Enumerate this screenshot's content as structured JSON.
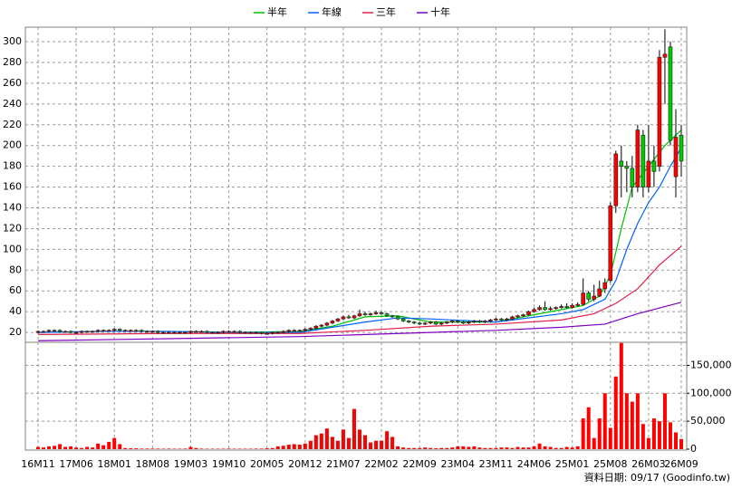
{
  "chart_data": {
    "type": "candlestick",
    "legend": "top",
    "grid": true,
    "categories": [
      "16M11",
      null,
      null,
      null,
      null,
      null,
      null,
      "17M06",
      null,
      null,
      null,
      null,
      null,
      null,
      "18M01",
      null,
      null,
      null,
      null,
      null,
      null,
      "18M08",
      null,
      null,
      null,
      null,
      null,
      null,
      "19M03",
      null,
      null,
      null,
      null,
      null,
      null,
      "19M10",
      null,
      null,
      null,
      null,
      null,
      null,
      "20M05",
      null,
      null,
      null,
      null,
      null,
      null,
      "20M12",
      null,
      null,
      null,
      null,
      null,
      null,
      "21M07",
      null,
      null,
      null,
      null,
      null,
      null,
      "22M02",
      null,
      null,
      null,
      null,
      null,
      null,
      "22M09",
      null,
      null,
      null,
      null,
      null,
      null,
      "23M04",
      null,
      null,
      null,
      null,
      null,
      null,
      "23M11",
      null,
      null,
      null,
      null,
      null,
      null,
      "24M06",
      null,
      null,
      null,
      null,
      null,
      null,
      "25M01",
      null,
      null,
      null,
      null,
      null,
      null,
      "25M08",
      null,
      null,
      null,
      null,
      null,
      null,
      "26M03",
      null,
      null,
      null,
      null,
      null,
      "26M09"
    ],
    "open": [
      20,
      21,
      21,
      22,
      22,
      21,
      21,
      20,
      20,
      21,
      21,
      21,
      22,
      22,
      22,
      23,
      22,
      22,
      22,
      22,
      21,
      21,
      21,
      20,
      20,
      20,
      20,
      20,
      20,
      21,
      21,
      21,
      20,
      20,
      20,
      21,
      21,
      21,
      20,
      20,
      20,
      20,
      19,
      19,
      20,
      20,
      21,
      22,
      22,
      22,
      23,
      24,
      26,
      27,
      29,
      31,
      33,
      35,
      34,
      36,
      38,
      37,
      38,
      39,
      38,
      36,
      35,
      33,
      31,
      30,
      29,
      28,
      29,
      30,
      28,
      29,
      30,
      31,
      30,
      29,
      30,
      31,
      30,
      31,
      32,
      33,
      32,
      33,
      35,
      36,
      37,
      40,
      42,
      44,
      42,
      43,
      44,
      45,
      44,
      46,
      47,
      58,
      52,
      55,
      62,
      70,
      142,
      185,
      180,
      178,
      160,
      210,
      160,
      185,
      180,
      285,
      295,
      170,
      210
    ],
    "high": [
      22,
      22,
      23,
      23,
      23,
      22,
      22,
      21,
      22,
      22,
      22,
      23,
      23,
      23,
      24,
      24,
      23,
      23,
      23,
      23,
      22,
      22,
      22,
      21,
      21,
      21,
      21,
      21,
      22,
      22,
      22,
      22,
      21,
      21,
      22,
      22,
      22,
      22,
      21,
      21,
      21,
      21,
      20,
      21,
      21,
      22,
      23,
      23,
      23,
      24,
      25,
      27,
      28,
      30,
      32,
      34,
      36,
      37,
      37,
      42,
      40,
      39,
      41,
      40,
      39,
      37,
      36,
      34,
      32,
      31,
      30,
      30,
      31,
      31,
      30,
      31,
      32,
      32,
      31,
      31,
      32,
      32,
      32,
      33,
      34,
      34,
      34,
      36,
      37,
      38,
      41,
      44,
      46,
      50,
      45,
      45,
      47,
      48,
      48,
      49,
      72,
      60,
      66,
      70,
      72,
      145,
      195,
      200,
      185,
      190,
      220,
      215,
      220,
      200,
      292,
      312,
      300,
      235,
      220
    ],
    "low": [
      19,
      20,
      20,
      21,
      20,
      20,
      19,
      19,
      19,
      20,
      20,
      20,
      21,
      21,
      21,
      21,
      21,
      21,
      21,
      20,
      20,
      20,
      19,
      19,
      19,
      19,
      19,
      19,
      19,
      20,
      20,
      19,
      19,
      19,
      19,
      20,
      20,
      19,
      19,
      19,
      19,
      18,
      18,
      18,
      19,
      19,
      20,
      21,
      21,
      21,
      22,
      23,
      25,
      26,
      28,
      30,
      32,
      33,
      33,
      35,
      36,
      36,
      37,
      37,
      35,
      34,
      32,
      30,
      29,
      28,
      27,
      27,
      28,
      27,
      27,
      28,
      29,
      29,
      28,
      28,
      29,
      29,
      29,
      30,
      31,
      31,
      31,
      32,
      34,
      35,
      36,
      39,
      41,
      41,
      41,
      42,
      43,
      43,
      43,
      45,
      46,
      50,
      50,
      54,
      58,
      68,
      135,
      150,
      155,
      150,
      155,
      150,
      155,
      160,
      175,
      240,
      200,
      150,
      170
    ],
    "close": [
      21,
      21,
      22,
      22,
      21,
      21,
      20,
      20,
      21,
      21,
      21,
      22,
      22,
      22,
      23,
      22,
      22,
      22,
      22,
      21,
      21,
      21,
      20,
      20,
      20,
      20,
      20,
      20,
      21,
      21,
      21,
      20,
      20,
      20,
      21,
      21,
      21,
      20,
      20,
      20,
      20,
      19,
      19,
      20,
      20,
      21,
      22,
      22,
      22,
      23,
      24,
      26,
      27,
      29,
      31,
      33,
      35,
      34,
      36,
      38,
      37,
      38,
      39,
      38,
      36,
      35,
      33,
      31,
      30,
      29,
      28,
      29,
      30,
      28,
      29,
      30,
      31,
      30,
      29,
      30,
      31,
      30,
      31,
      32,
      33,
      32,
      33,
      35,
      36,
      37,
      40,
      42,
      44,
      42,
      43,
      44,
      45,
      44,
      46,
      47,
      58,
      52,
      55,
      62,
      68,
      142,
      192,
      180,
      178,
      160,
      215,
      160,
      185,
      175,
      285,
      288,
      205,
      208,
      185
    ],
    "volume": [
      4000,
      3000,
      5000,
      6000,
      9000,
      4000,
      5000,
      3000,
      2000,
      4000,
      3000,
      10000,
      7000,
      13000,
      20000,
      9000,
      2000,
      1500,
      1500,
      1000,
      1000,
      1000,
      1000,
      800,
      1000,
      800,
      800,
      1000,
      4000,
      2000,
      1000,
      800,
      800,
      800,
      800,
      1000,
      800,
      800,
      800,
      800,
      1000,
      1000,
      1500,
      2000,
      5000,
      6000,
      8000,
      9000,
      8000,
      10000,
      15000,
      25000,
      28000,
      37000,
      22000,
      15000,
      35000,
      20000,
      72000,
      35000,
      25000,
      12000,
      15000,
      15000,
      32000,
      22000,
      5000,
      3000,
      2000,
      2000,
      2000,
      3000,
      2000,
      1500,
      2000,
      2000,
      3000,
      5000,
      5000,
      4000,
      5000,
      3000,
      2000,
      2000,
      2000,
      3000,
      3000,
      2000,
      4000,
      3000,
      3000,
      5000,
      10000,
      5000,
      4000,
      2000,
      2000,
      4000,
      3000,
      5000,
      55000,
      75000,
      20000,
      55000,
      100000,
      38000,
      130000,
      190000,
      100000,
      85000,
      100000,
      45000,
      20000,
      55000,
      50000,
      100000,
      48000,
      30000,
      18000
    ],
    "color_up": "#ff0000",
    "color_down": "#00cc00",
    "volume_color": "#ff0000",
    "ylim": [
      10.5,
      314
    ],
    "yticks": [
      20,
      40,
      60,
      80,
      100,
      120,
      140,
      160,
      180,
      200,
      220,
      240,
      260,
      280,
      300
    ],
    "volume_ylim": [
      0,
      188000
    ],
    "volume_yticks": [
      0,
      {
        "value": 50000,
        "label": "50,000"
      },
      {
        "value": 100000,
        "label": "100,000"
      },
      {
        "value": 150000,
        "label": "150,000"
      }
    ],
    "series": [
      {
        "name": "半年",
        "color": "#00c000",
        "x": [
          0,
          12,
          24,
          36,
          48,
          54,
          60,
          66,
          72,
          84,
          90,
          96,
          100,
          103,
          105,
          107,
          109,
          112,
          115,
          118
        ],
        "values": [
          20,
          21,
          21,
          20,
          21,
          26,
          35,
          36,
          30,
          30,
          36,
          42,
          46,
          55,
          75,
          120,
          160,
          180,
          200,
          215
        ]
      },
      {
        "name": "年線",
        "color": "#0060ff",
        "x": [
          0,
          12,
          24,
          36,
          48,
          60,
          66,
          72,
          84,
          96,
          100,
          104,
          106,
          108,
          110,
          112,
          114,
          116,
          118
        ],
        "values": [
          20,
          21,
          21,
          20,
          20,
          30,
          34,
          33,
          30,
          38,
          42,
          52,
          70,
          100,
          125,
          145,
          160,
          180,
          198
        ]
      },
      {
        "name": "三年",
        "color": "#e0204a",
        "x": [
          0,
          24,
          48,
          60,
          72,
          84,
          96,
          102,
          106,
          110,
          114,
          118
        ],
        "values": [
          18,
          19,
          19,
          22,
          26,
          28,
          32,
          38,
          48,
          62,
          85,
          103
        ]
      },
      {
        "name": "十年",
        "color": "#8000c0",
        "x": [
          0,
          24,
          48,
          72,
          84,
          96,
          104,
          110,
          118
        ],
        "values": [
          12,
          14,
          16,
          20,
          22,
          25,
          28,
          38,
          49
        ]
      }
    ],
    "note": "資料日期: 09/17 (Goodinfo.tw)"
  }
}
